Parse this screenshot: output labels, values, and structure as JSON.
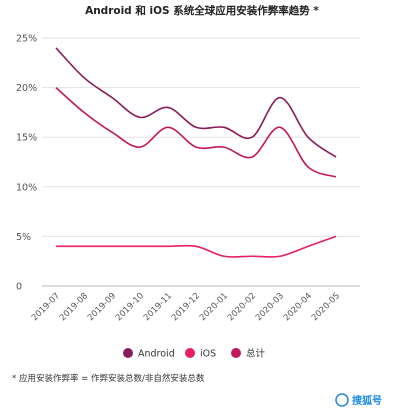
{
  "chart_data": {
    "type": "line",
    "title": "Android 和 iOS 系统全球应用安装作弊率趋势 *",
    "categories": [
      "2019-07",
      "2019-08",
      "2019-09",
      "2019-10",
      "2019-11",
      "2019-12",
      "2020-01",
      "2020-02",
      "2020-03",
      "2020-04",
      "2020-05"
    ],
    "yticks": [
      "25%",
      "20%",
      "15%",
      "10%",
      "5%",
      "0"
    ],
    "ylim": [
      0,
      25
    ],
    "series": [
      {
        "name": "Android",
        "color": "#8b1a5a",
        "values": [
          24,
          21,
          19,
          17,
          18,
          16,
          16,
          15,
          19,
          15,
          13
        ]
      },
      {
        "name": "iOS",
        "color": "#e91e63",
        "values": [
          4,
          4,
          4,
          4,
          4,
          4,
          3,
          3,
          3,
          4,
          5
        ]
      },
      {
        "name": "总计",
        "color": "#c2185b",
        "values": [
          20,
          17.5,
          15.5,
          14,
          16,
          14,
          14,
          13,
          16,
          12,
          11
        ]
      }
    ],
    "legend_position": "bottom",
    "grid": true
  },
  "footnote": "* 应用安装作弊率 = 作弊安装总数/非自然安装总数",
  "watermark": {
    "text": "搜狐号"
  }
}
